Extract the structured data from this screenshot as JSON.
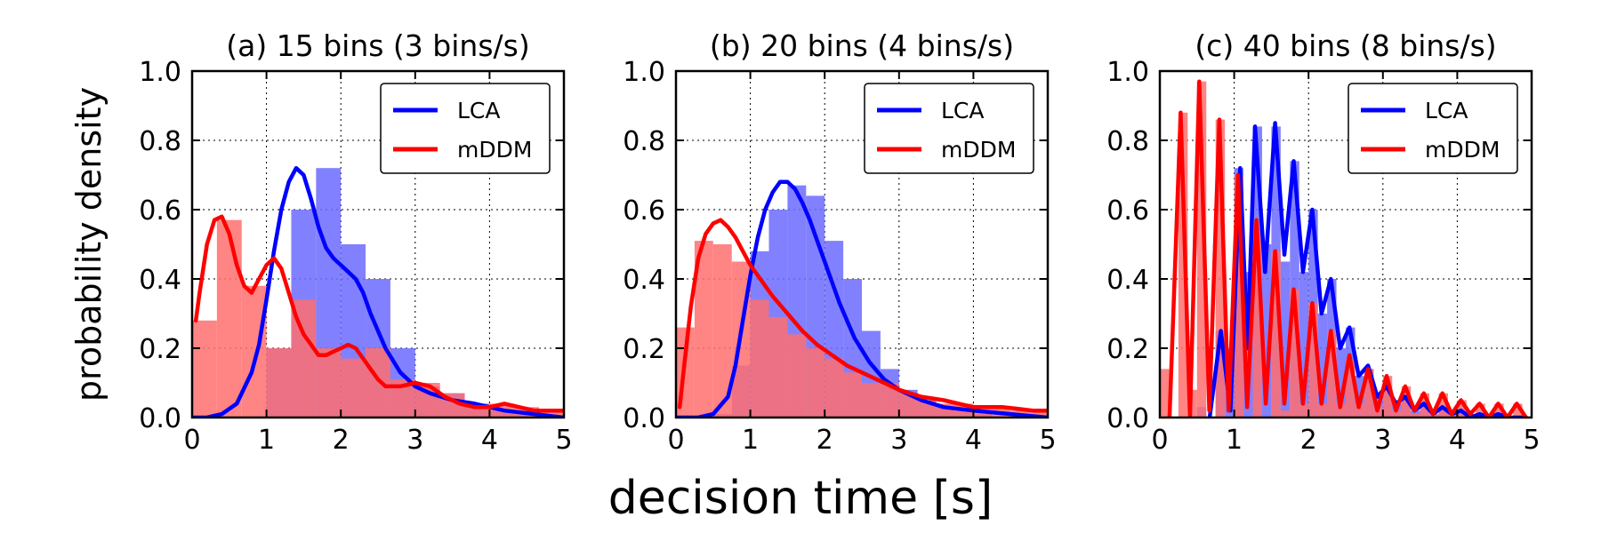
{
  "figure": {
    "xlabel": "decision time [s]",
    "ylabel": "probability density"
  },
  "colors": {
    "lca_line": "#0000ff",
    "lca_hist": "#6b6bff",
    "mddm_line": "#ff0000",
    "mddm_hist": "#ff6f6f"
  },
  "chart_data": [
    {
      "type": "bar",
      "title": "(a) 15 bins (3 bins/s)",
      "xlim": [
        0,
        5
      ],
      "ylim": [
        0,
        1.0
      ],
      "xticks": [
        "0",
        "1",
        "2",
        "3",
        "4",
        "5"
      ],
      "yticks": [
        "0.0",
        "0.2",
        "0.4",
        "0.6",
        "0.8",
        "1.0"
      ],
      "grid": true,
      "legend_position": "top-right",
      "bin_width": 0.3333,
      "series": [
        {
          "name": "LCA",
          "hist_values": [
            0.0,
            0.0,
            0.0,
            0.2,
            0.6,
            0.72,
            0.5,
            0.4,
            0.2,
            0.09,
            0.07,
            0.04,
            0.02,
            0.01,
            0.0
          ],
          "curve": {
            "x": [
              0,
              0.2,
              0.4,
              0.6,
              0.8,
              0.9,
              1.0,
              1.1,
              1.2,
              1.3,
              1.4,
              1.5,
              1.6,
              1.7,
              1.8,
              1.9,
              2.0,
              2.1,
              2.2,
              2.3,
              2.4,
              2.6,
              2.8,
              3.0,
              3.2,
              3.5,
              3.8,
              4.2,
              4.6,
              5.0
            ],
            "y": [
              0.0,
              0.0,
              0.01,
              0.04,
              0.13,
              0.21,
              0.34,
              0.48,
              0.6,
              0.68,
              0.72,
              0.7,
              0.63,
              0.55,
              0.49,
              0.46,
              0.44,
              0.42,
              0.4,
              0.36,
              0.3,
              0.2,
              0.13,
              0.09,
              0.07,
              0.05,
              0.04,
              0.02,
              0.01,
              0.0
            ]
          }
        },
        {
          "name": "mDDM",
          "hist_values": [
            0.28,
            0.57,
            0.38,
            0.2,
            0.34,
            0.2,
            0.17,
            0.2,
            0.11,
            0.1,
            0.07,
            0.04,
            0.04,
            0.03,
            0.02
          ],
          "curve": {
            "x": [
              0.05,
              0.1,
              0.2,
              0.3,
              0.4,
              0.5,
              0.6,
              0.7,
              0.8,
              0.9,
              1.0,
              1.1,
              1.2,
              1.3,
              1.4,
              1.5,
              1.6,
              1.7,
              1.8,
              1.9,
              2.0,
              2.1,
              2.2,
              2.3,
              2.4,
              2.5,
              2.6,
              2.8,
              3.0,
              3.2,
              3.4,
              3.6,
              3.8,
              4.0,
              4.2,
              4.4,
              4.6,
              4.8,
              5.0
            ],
            "y": [
              0.28,
              0.36,
              0.5,
              0.57,
              0.58,
              0.53,
              0.44,
              0.38,
              0.36,
              0.4,
              0.44,
              0.46,
              0.43,
              0.36,
              0.29,
              0.24,
              0.21,
              0.18,
              0.18,
              0.19,
              0.2,
              0.21,
              0.2,
              0.17,
              0.14,
              0.11,
              0.09,
              0.09,
              0.1,
              0.09,
              0.06,
              0.04,
              0.03,
              0.03,
              0.04,
              0.03,
              0.02,
              0.02,
              0.02
            ]
          }
        }
      ]
    },
    {
      "type": "bar",
      "title": "(b) 20 bins (4 bins/s)",
      "xlim": [
        0,
        5
      ],
      "ylim": [
        0,
        1.0
      ],
      "xticks": [
        "0",
        "1",
        "2",
        "3",
        "4",
        "5"
      ],
      "yticks": [
        "0.0",
        "0.2",
        "0.4",
        "0.6",
        "0.8",
        "1.0"
      ],
      "grid": true,
      "legend_position": "top-right",
      "bin_width": 0.25,
      "series": [
        {
          "name": "LCA",
          "hist_values": [
            0.0,
            0.0,
            0.01,
            0.15,
            0.48,
            0.6,
            0.67,
            0.64,
            0.51,
            0.4,
            0.25,
            0.14,
            0.08,
            0.05,
            0.03,
            0.02,
            0.01,
            0.0,
            0.0,
            0.0
          ],
          "curve": {
            "x": [
              0,
              0.3,
              0.5,
              0.7,
              0.8,
              0.9,
              1.0,
              1.1,
              1.2,
              1.3,
              1.4,
              1.5,
              1.6,
              1.7,
              1.8,
              1.9,
              2.0,
              2.2,
              2.4,
              2.6,
              2.8,
              3.0,
              3.3,
              3.6,
              4.0,
              4.5,
              5.0
            ],
            "y": [
              0.0,
              0.0,
              0.01,
              0.06,
              0.15,
              0.28,
              0.41,
              0.52,
              0.6,
              0.65,
              0.68,
              0.68,
              0.66,
              0.62,
              0.57,
              0.51,
              0.45,
              0.33,
              0.23,
              0.16,
              0.11,
              0.08,
              0.05,
              0.03,
              0.02,
              0.01,
              0.0
            ]
          }
        },
        {
          "name": "mDDM",
          "hist_values": [
            0.26,
            0.51,
            0.5,
            0.45,
            0.34,
            0.29,
            0.24,
            0.2,
            0.17,
            0.13,
            0.1,
            0.1,
            0.07,
            0.05,
            0.04,
            0.04,
            0.03,
            0.03,
            0.02,
            0.02
          ],
          "curve": {
            "x": [
              0.05,
              0.1,
              0.2,
              0.3,
              0.4,
              0.5,
              0.6,
              0.7,
              0.8,
              0.9,
              1.0,
              1.1,
              1.2,
              1.3,
              1.5,
              1.7,
              1.9,
              2.1,
              2.3,
              2.5,
              2.7,
              3.0,
              3.3,
              3.6,
              4.0,
              4.4,
              4.8,
              5.0
            ],
            "y": [
              0.03,
              0.13,
              0.32,
              0.46,
              0.53,
              0.56,
              0.57,
              0.55,
              0.52,
              0.48,
              0.44,
              0.41,
              0.38,
              0.35,
              0.3,
              0.25,
              0.21,
              0.18,
              0.15,
              0.13,
              0.11,
              0.08,
              0.06,
              0.05,
              0.03,
              0.03,
              0.02,
              0.02
            ]
          }
        }
      ]
    },
    {
      "type": "bar",
      "title": "(c) 40 bins (8 bins/s)",
      "xlim": [
        0,
        5
      ],
      "ylim": [
        0,
        1.0
      ],
      "xticks": [
        "0",
        "1",
        "2",
        "3",
        "4",
        "5"
      ],
      "yticks": [
        "0.0",
        "0.2",
        "0.4",
        "0.6",
        "0.8",
        "1.0"
      ],
      "grid": true,
      "legend_position": "top-right",
      "bin_width": 0.125,
      "series": [
        {
          "name": "LCA",
          "hist_values": [
            0.0,
            0.0,
            0.0,
            0.0,
            0.03,
            0.0,
            0.25,
            0.2,
            0.72,
            0.42,
            0.84,
            0.5,
            0.84,
            0.45,
            0.74,
            0.42,
            0.6,
            0.3,
            0.4,
            0.2,
            0.26,
            0.12,
            0.14,
            0.06,
            0.09,
            0.04,
            0.06,
            0.02,
            0.04,
            0.01,
            0.03,
            0.01,
            0.02,
            0.0,
            0.01,
            0.0,
            0.01,
            0.0,
            0.0,
            0.0
          ],
          "peaks": {
            "x": [
              0.82,
              1.08,
              1.28,
              1.55,
              1.8,
              2.05,
              2.3,
              2.55,
              2.8,
              3.05,
              3.3,
              3.55,
              3.8,
              4.05,
              4.3,
              4.55,
              4.8
            ],
            "y": [
              0.25,
              0.72,
              0.84,
              0.85,
              0.74,
              0.6,
              0.4,
              0.26,
              0.15,
              0.09,
              0.06,
              0.04,
              0.03,
              0.02,
              0.01,
              0.01,
              0.0
            ],
            "baseline": [
              0.02,
              0.2,
              0.42,
              0.47,
              0.42,
              0.3,
              0.2,
              0.12,
              0.06,
              0.04,
              0.02,
              0.01,
              0.01,
              0.0,
              0.0,
              0.0,
              0.0
            ]
          }
        },
        {
          "name": "mDDM",
          "hist_values": [
            0.14,
            0.0,
            0.88,
            0.08,
            0.97,
            0.0,
            0.86,
            0.0,
            0.7,
            0.0,
            0.53,
            0.0,
            0.48,
            0.02,
            0.37,
            0.04,
            0.33,
            0.04,
            0.25,
            0.04,
            0.17,
            0.04,
            0.14,
            0.03,
            0.12,
            0.02,
            0.09,
            0.01,
            0.07,
            0.01,
            0.07,
            0.01,
            0.05,
            0.01,
            0.04,
            0.0,
            0.04,
            0.0,
            0.04,
            0.0
          ],
          "peaks": {
            "x": [
              0.28,
              0.53,
              0.8,
              1.05,
              1.3,
              1.55,
              1.8,
              2.05,
              2.3,
              2.55,
              2.8,
              3.05,
              3.3,
              3.55,
              3.8,
              4.05,
              4.3,
              4.55,
              4.8
            ],
            "y": [
              0.88,
              0.97,
              0.86,
              0.7,
              0.57,
              0.48,
              0.37,
              0.33,
              0.25,
              0.18,
              0.14,
              0.12,
              0.09,
              0.07,
              0.07,
              0.05,
              0.04,
              0.04,
              0.04
            ],
            "baseline": [
              0.0,
              0.02,
              0.02,
              0.03,
              0.04,
              0.04,
              0.04,
              0.04,
              0.03,
              0.03,
              0.02,
              0.02,
              0.02,
              0.01,
              0.01,
              0.01,
              0.0,
              0.0,
              0.0
            ]
          }
        }
      ]
    }
  ]
}
